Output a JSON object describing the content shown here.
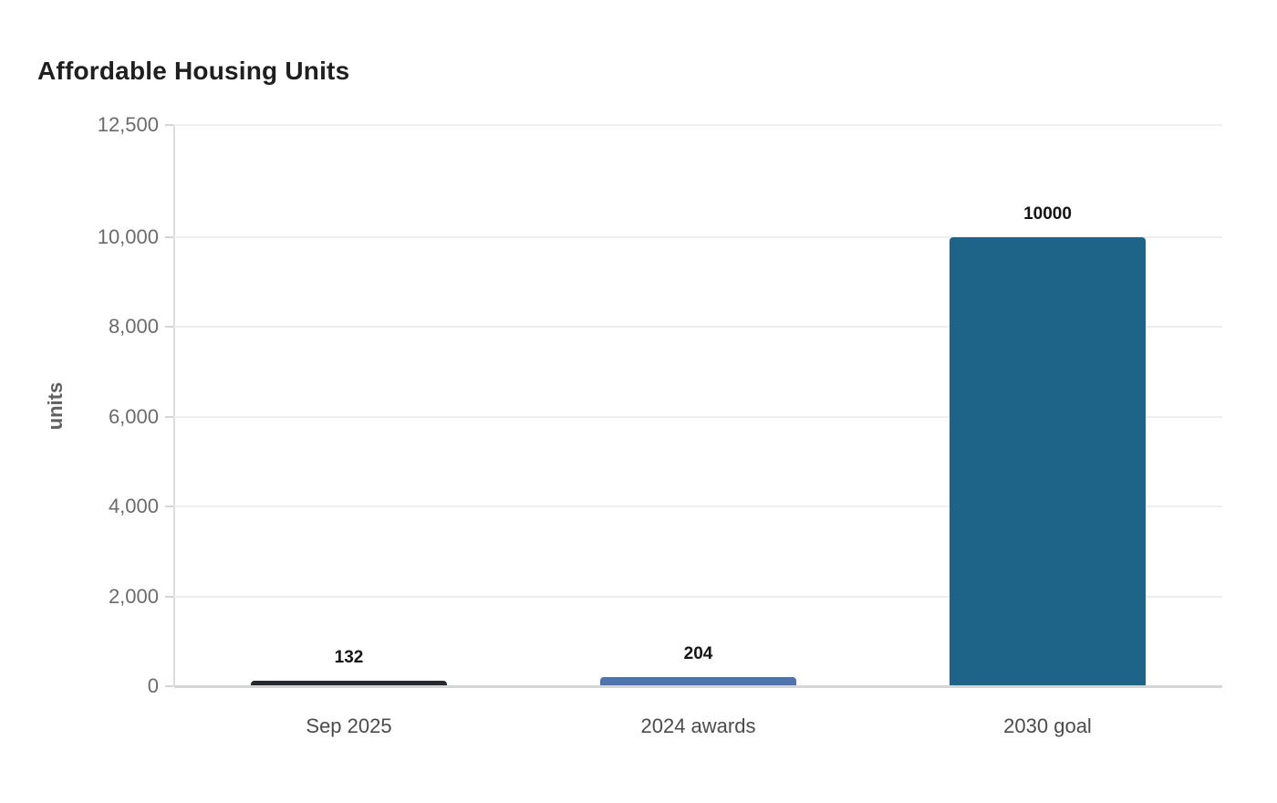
{
  "chart_data": {
    "type": "bar",
    "title": "Affordable Housing Units",
    "categories": [
      "Sep 2025",
      "2024 awards",
      "2030 goal"
    ],
    "values": [
      132,
      204,
      10000
    ],
    "bar_labels": [
      "132",
      "204",
      "10000"
    ],
    "bar_colors": [
      "#26292d",
      "#4e73ae",
      "#1d6488"
    ],
    "bar_patterns": [
      "dots",
      "solid",
      "solid"
    ],
    "xlabel": "",
    "ylabel": "units",
    "ylim": [
      0,
      12500
    ],
    "yticks": [
      0,
      2000,
      4000,
      6000,
      8000,
      10000,
      12500
    ],
    "ytick_labels": [
      "0",
      "2,000",
      "4,000",
      "6,000",
      "8,000",
      "10,000",
      "12,500"
    ],
    "grid": true,
    "legend": false,
    "colors": {
      "title_text": "#1f1f1f",
      "axis_tick_text": "#6b6b6b",
      "category_text": "#4b4b4b",
      "value_label_text": "#141414",
      "gridline": "#eeeeee",
      "baseline": "#d5d5d5",
      "axis_line": "#dcdcdc"
    }
  }
}
